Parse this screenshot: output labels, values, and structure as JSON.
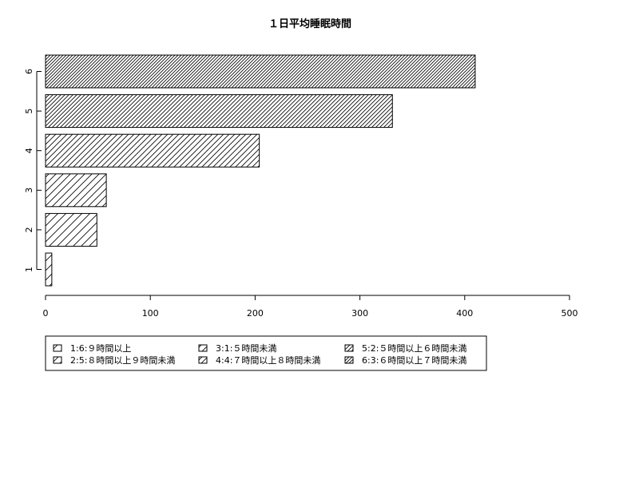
{
  "chart_data": {
    "type": "bar",
    "orientation": "horizontal",
    "title": "１日平均睡眠時間",
    "xlabel": "",
    "ylabel": "",
    "categories": [
      "1",
      "2",
      "3",
      "4",
      "5",
      "6"
    ],
    "values": [
      6,
      49,
      58,
      204,
      331,
      410
    ],
    "xlim": [
      0,
      500
    ],
    "x_ticks": [
      0,
      100,
      200,
      300,
      400,
      500
    ],
    "fill": "hatched",
    "grid": false,
    "legend_position": "bottom",
    "legend": [
      "1:6:９時間以上",
      "2:5:８時間以上９時間未満",
      "3:1:５時間未満",
      "4:4:７時間以上８時間未満",
      "5:2:５時間以上６時間未満",
      "6:3:６時間以上７時間未満"
    ]
  }
}
